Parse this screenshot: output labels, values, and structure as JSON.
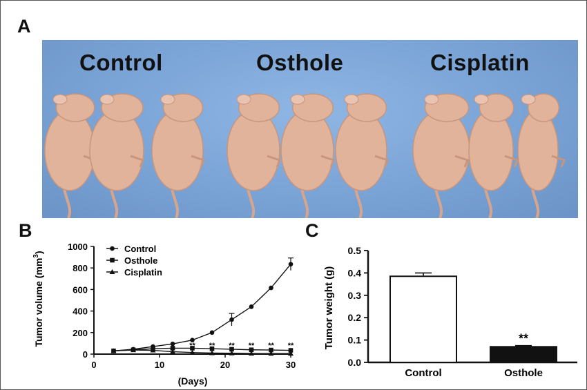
{
  "figure": {
    "panel_a_letter": "A",
    "panel_b_letter": "B",
    "panel_c_letter": "C",
    "photo": {
      "group_labels": [
        "Control",
        "Osthole",
        "Cisplatin"
      ],
      "background_color": "#7fa8da",
      "mouse_color": "#e0b39a"
    }
  },
  "chart_data": [
    {
      "type": "line",
      "ylabel": "Tumor volume (mm",
      "ylabel_sup": "3",
      "ylabel_close": ")",
      "xlabel": "(Days)",
      "xlim": [
        0,
        30
      ],
      "ylim": [
        0,
        1000
      ],
      "xticks": [
        0,
        10,
        20,
        30
      ],
      "yticks": [
        0,
        200,
        400,
        600,
        800,
        1000
      ],
      "legend_position": "top-left",
      "x": [
        3,
        6,
        9,
        12,
        15,
        18,
        21,
        24,
        27,
        30
      ],
      "series": [
        {
          "name": "Control",
          "marker": "circle",
          "values": [
            30,
            45,
            70,
            95,
            130,
            200,
            320,
            440,
            615,
            835
          ]
        },
        {
          "name": "Osthole",
          "marker": "square",
          "values": [
            30,
            40,
            50,
            55,
            55,
            50,
            45,
            40,
            38,
            35
          ]
        },
        {
          "name": "Cisplatin",
          "marker": "triangle",
          "values": [
            30,
            38,
            35,
            22,
            15,
            10,
            8,
            6,
            5,
            5
          ]
        }
      ],
      "significance_x": [
        15,
        18,
        21,
        24,
        27,
        30
      ],
      "significance_label": "**"
    },
    {
      "type": "bar",
      "ylabel": "Tumor weight (g)",
      "categories": [
        "Control",
        "Osthole"
      ],
      "values": [
        0.385,
        0.07
      ],
      "errors": [
        0.015,
        0.005
      ],
      "ylim": [
        0,
        0.5
      ],
      "yticks": [
        "0.0",
        "0.1",
        "0.2",
        "0.3",
        "0.4",
        "0.5"
      ],
      "bar_fills": [
        "#ffffff",
        "#111111"
      ],
      "annotation": "**"
    }
  ]
}
